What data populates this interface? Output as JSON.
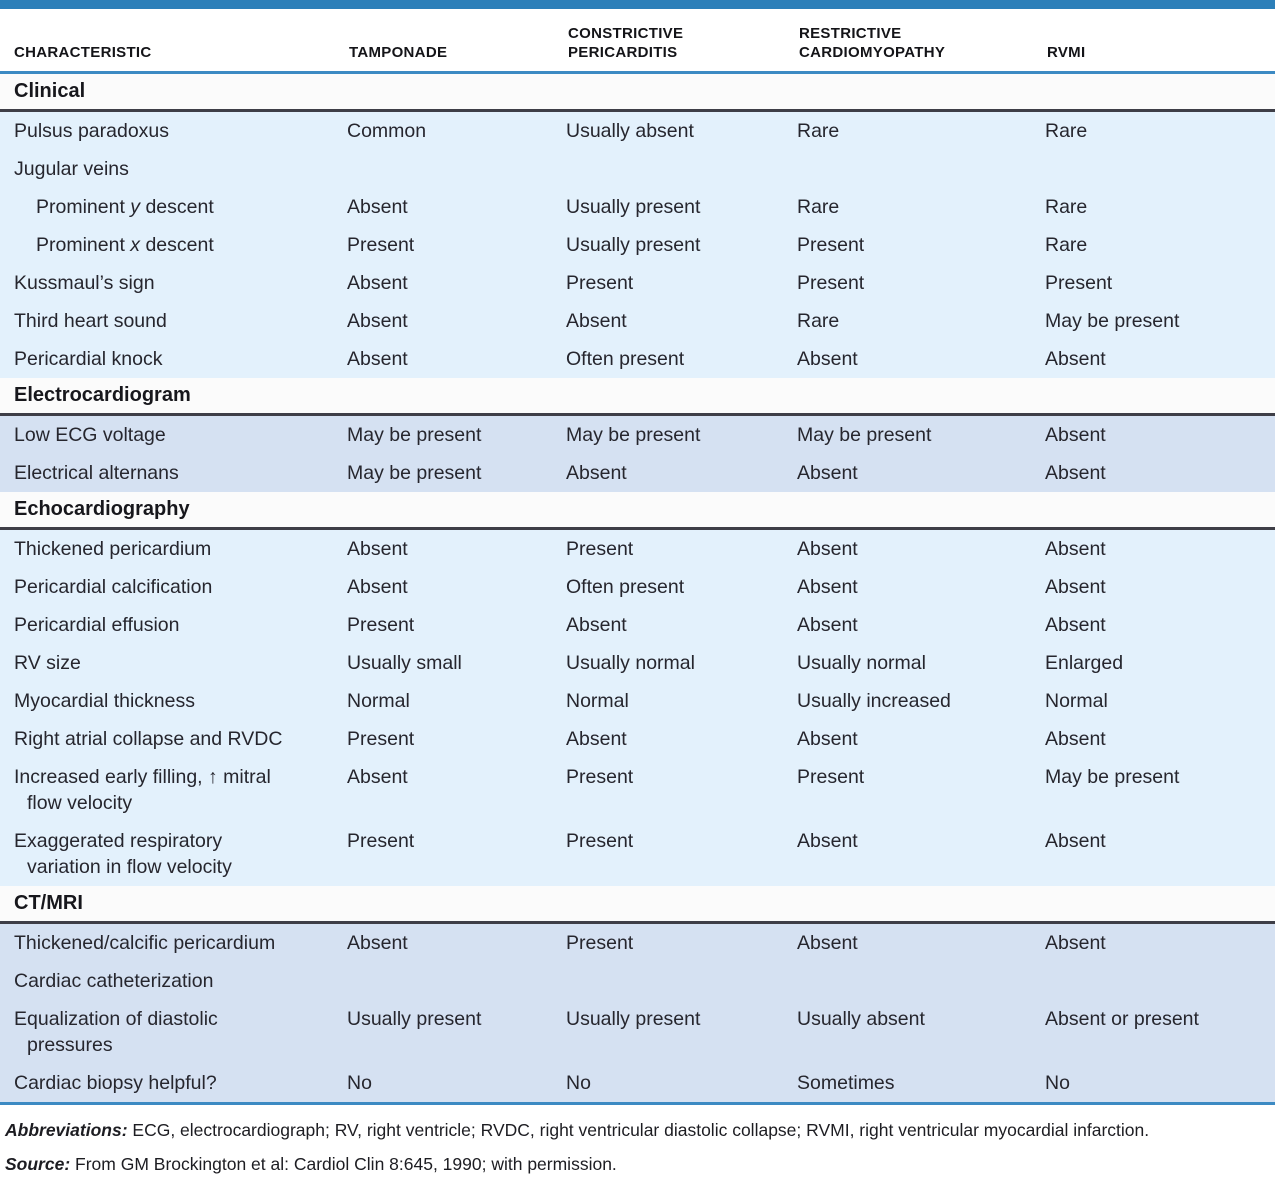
{
  "table": {
    "columns": [
      "CHARACTERISTIC",
      "TAMPONADE",
      "CONSTRICTIVE\nPERICARDITIS",
      "RESTRICTIVE\nCARDIOMYOPATHY",
      "RVMI"
    ],
    "sections": [
      {
        "title": "Clinical",
        "tone": "cyan",
        "rows": [
          {
            "parts": [
              {
                "text": "Pulsus paradoxus"
              }
            ],
            "indent": 0,
            "values": [
              "Common",
              "Usually absent",
              "Rare",
              "Rare"
            ]
          },
          {
            "parts": [
              {
                "text": "Jugular veins"
              }
            ],
            "indent": 0,
            "values": [
              "",
              "",
              "",
              ""
            ]
          },
          {
            "parts": [
              {
                "text": "Prominent "
              },
              {
                "text": "y",
                "italic": true
              },
              {
                "text": " descent"
              }
            ],
            "indent": 1,
            "values": [
              "Absent",
              "Usually present",
              "Rare",
              "Rare"
            ]
          },
          {
            "parts": [
              {
                "text": "Prominent "
              },
              {
                "text": "x",
                "italic": true
              },
              {
                "text": " descent"
              }
            ],
            "indent": 1,
            "values": [
              "Present",
              "Usually present",
              "Present",
              "Rare"
            ]
          },
          {
            "parts": [
              {
                "text": "Kussmaul’s sign"
              }
            ],
            "indent": 0,
            "values": [
              "Absent",
              "Present",
              "Present",
              "Present"
            ]
          },
          {
            "parts": [
              {
                "text": "Third heart sound"
              }
            ],
            "indent": 0,
            "values": [
              "Absent",
              "Absent",
              "Rare",
              "May be present"
            ]
          },
          {
            "parts": [
              {
                "text": "Pericardial knock"
              }
            ],
            "indent": 0,
            "values": [
              "Absent",
              "Often present",
              "Absent",
              "Absent"
            ]
          }
        ]
      },
      {
        "title": "Electrocardiogram",
        "tone": "periwinkle",
        "rows": [
          {
            "parts": [
              {
                "text": "Low ECG voltage"
              }
            ],
            "indent": 0,
            "values": [
              "May be present",
              "May be present",
              "May be present",
              "Absent"
            ]
          },
          {
            "parts": [
              {
                "text": "Electrical alternans"
              }
            ],
            "indent": 0,
            "values": [
              "May be present",
              "Absent",
              "Absent",
              "Absent"
            ]
          }
        ]
      },
      {
        "title": "Echocardiography",
        "tone": "cyan",
        "rows": [
          {
            "parts": [
              {
                "text": "Thickened pericardium"
              }
            ],
            "indent": 0,
            "values": [
              "Absent",
              "Present",
              "Absent",
              "Absent"
            ]
          },
          {
            "parts": [
              {
                "text": "Pericardial calcification"
              }
            ],
            "indent": 0,
            "values": [
              "Absent",
              "Often present",
              "Absent",
              "Absent"
            ]
          },
          {
            "parts": [
              {
                "text": "Pericardial effusion"
              }
            ],
            "indent": 0,
            "values": [
              "Present",
              "Absent",
              "Absent",
              "Absent"
            ]
          },
          {
            "parts": [
              {
                "text": "RV size"
              }
            ],
            "indent": 0,
            "values": [
              "Usually small",
              "Usually normal",
              "Usually normal",
              "Enlarged"
            ]
          },
          {
            "parts": [
              {
                "text": "Myocardial thickness"
              }
            ],
            "indent": 0,
            "values": [
              "Normal",
              "Normal",
              "Usually increased",
              "Normal"
            ]
          },
          {
            "parts": [
              {
                "text": "Right atrial collapse and RVDC"
              }
            ],
            "indent": 0,
            "values": [
              "Present",
              "Absent",
              "Absent",
              "Absent"
            ]
          },
          {
            "parts": [
              {
                "text": "Increased early filling, ↑ mitral"
              },
              {
                "text": "flow velocity",
                "line2": true
              }
            ],
            "indent": 0,
            "values": [
              "Absent",
              "Present",
              "Present",
              "May be present"
            ]
          },
          {
            "parts": [
              {
                "text": "Exaggerated respiratory"
              },
              {
                "text": "variation in flow velocity",
                "line2": true
              }
            ],
            "indent": 0,
            "values": [
              "Present",
              "Present",
              "Absent",
              "Absent"
            ]
          }
        ]
      },
      {
        "title": "CT/MRI",
        "tone": "periwinkle",
        "rows": [
          {
            "parts": [
              {
                "text": "Thickened/calcific pericardium"
              }
            ],
            "indent": 0,
            "values": [
              "Absent",
              "Present",
              "Absent",
              "Absent"
            ]
          },
          {
            "parts": [
              {
                "text": "Cardiac catheterization"
              }
            ],
            "indent": 0,
            "values": [
              "",
              "",
              "",
              ""
            ]
          },
          {
            "parts": [
              {
                "text": "Equalization of diastolic"
              },
              {
                "text": "pressures",
                "line2": true
              }
            ],
            "indent": 0,
            "values": [
              "Usually present",
              "Usually present",
              "Usually absent",
              "Absent or present"
            ]
          },
          {
            "parts": [
              {
                "text": "Cardiac biopsy helpful?"
              }
            ],
            "indent": 0,
            "values": [
              "No",
              "No",
              "Sometimes",
              "No"
            ]
          }
        ]
      }
    ]
  },
  "footer": {
    "abbreviations_label": "Abbreviations:",
    "abbreviations_text": "ECG, electrocardiograph; RV, right ventricle; RVDC, right ventricular diastolic collapse; RVMI, right ventricular myocardial infarction.",
    "source_label": "Source:",
    "source_text": "From GM Brockington et al: Cardiol Clin 8:645, 1990; with permission."
  },
  "colors": {
    "accent_blue": "#2c7fb9",
    "rule_blue": "#3c8ac3",
    "rule_dark": "#3e3e47",
    "row_cyan": "#e3f1fc",
    "row_periwinkle": "#d5e1f2",
    "section_band": "#fbfbfb"
  }
}
